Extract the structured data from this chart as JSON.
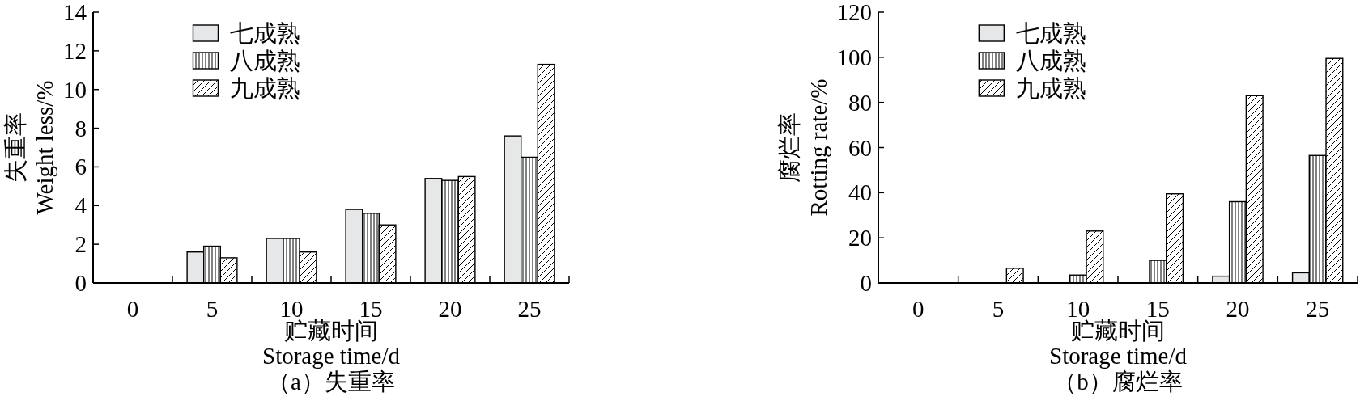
{
  "chart_data": [
    {
      "type": "bar",
      "title": "（a）失重率",
      "xlabel": "贮藏时间\nStorage time/d",
      "ylabel": "失重率\nWeight less/%",
      "categories": [
        "0",
        "5",
        "10",
        "15",
        "20",
        "25"
      ],
      "series": [
        {
          "name": "七成熟",
          "color": "#e6e7e9",
          "values": [
            0,
            1.6,
            2.3,
            3.8,
            5.4,
            7.6
          ]
        },
        {
          "name": "八成熟",
          "color": "#000000",
          "values": [
            0,
            1.9,
            2.3,
            3.6,
            5.3,
            6.5
          ]
        },
        {
          "name": "九成熟",
          "color": "#000000",
          "values": [
            0,
            1.3,
            1.6,
            3.0,
            5.5,
            11.3
          ]
        }
      ],
      "ylim": [
        0,
        14
      ],
      "yticks": [
        0,
        2,
        4,
        6,
        8,
        10,
        12,
        14
      ],
      "legend": "top left"
    },
    {
      "type": "bar",
      "title": "（b）腐烂率",
      "xlabel": "贮藏时间\nStorage time/d",
      "ylabel": "腐烂率\nRotting rate/%",
      "categories": [
        "0",
        "5",
        "10",
        "15",
        "20",
        "25"
      ],
      "series": [
        {
          "name": "七成熟",
          "color": "#e6e7e9",
          "values": [
            0,
            0,
            0,
            0,
            3,
            4.5
          ]
        },
        {
          "name": "八成熟",
          "color": "#000000",
          "values": [
            0,
            0,
            3.5,
            10,
            36,
            56.5
          ]
        },
        {
          "name": "九成熟",
          "color": "#000000",
          "values": [
            0,
            6.5,
            23,
            39.5,
            83,
            99.5
          ]
        }
      ],
      "ylim": [
        0,
        120
      ],
      "yticks": [
        0,
        20,
        40,
        60,
        80,
        100,
        120
      ],
      "legend": "top left"
    }
  ]
}
